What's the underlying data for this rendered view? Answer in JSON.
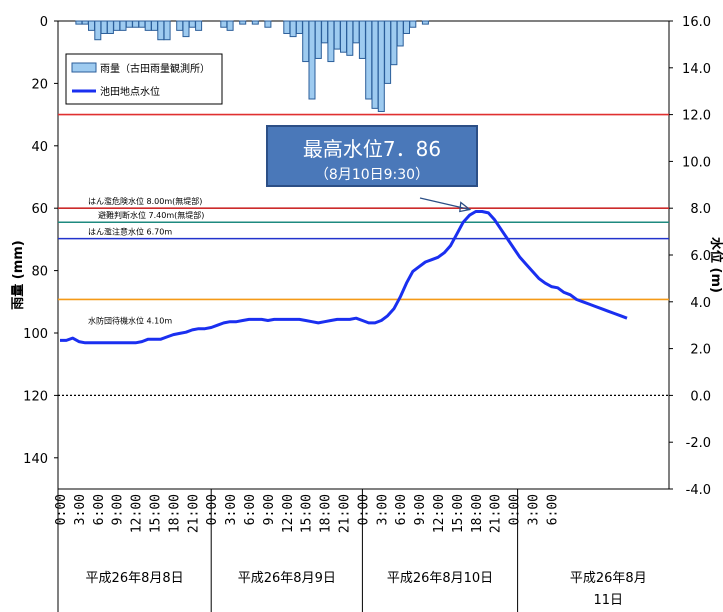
{
  "chart_data": {
    "type": "bar+line",
    "left_axis": {
      "label": "雨量 (mm)",
      "ticks": [
        0,
        20,
        40,
        60,
        80,
        100,
        120,
        140
      ],
      "range": [
        0,
        150
      ],
      "inverted": true
    },
    "right_axis": {
      "label": "水位 (m)",
      "ticks": [
        "16.0",
        "14.0",
        "12.0",
        "10.0",
        "8.0",
        "6.0",
        "4.0",
        "2.0",
        "0.0",
        "-2.0",
        "-4.0"
      ],
      "range": [
        -4,
        16
      ]
    },
    "x_time_labels": [
      "0:00",
      "3:00",
      "6:00",
      "9:00",
      "12:00",
      "15:00",
      "18:00",
      "21:00",
      "0:00",
      "3:00",
      "6:00",
      "9:00",
      "12:00",
      "15:00",
      "18:00",
      "21:00",
      "0:00",
      "3:00",
      "6:00",
      "9:00",
      "12:00",
      "15:00",
      "18:00",
      "21:00",
      "0:00",
      "3:00",
      "6:00"
    ],
    "dates": [
      "平成26年8月8日",
      "平成26年8月9日",
      "平成26年8月10日",
      "平成26年8月11日"
    ],
    "legend": [
      "雨量（古田雨量観測所）",
      "池田地点水位"
    ],
    "rainfall_series": {
      "name": "雨量（古田雨量観測所）",
      "start_hour": 3,
      "step_hours": 1,
      "unit": "mm",
      "values": [
        1,
        1,
        3,
        6,
        4,
        4,
        3,
        3,
        2,
        2,
        2,
        3,
        3,
        6,
        6,
        0,
        3,
        5,
        2,
        3,
        0,
        0,
        0,
        2,
        3,
        0,
        1,
        0,
        1,
        0,
        2,
        0,
        0,
        4,
        5,
        4,
        13,
        25,
        12,
        7,
        13,
        9,
        10,
        11,
        7,
        12,
        25,
        28,
        29,
        20,
        14,
        8,
        4,
        2,
        0,
        1
      ]
    },
    "water_level_series": {
      "name": "池田地点水位",
      "start_hour": 0,
      "step_hours": 1,
      "unit": "m",
      "values": [
        2.35,
        2.35,
        2.45,
        2.3,
        2.25,
        2.25,
        2.25,
        2.25,
        2.25,
        2.25,
        2.25,
        2.25,
        2.25,
        2.3,
        2.4,
        2.4,
        2.4,
        2.5,
        2.6,
        2.65,
        2.7,
        2.8,
        2.85,
        2.85,
        2.9,
        3.0,
        3.1,
        3.15,
        3.15,
        3.2,
        3.25,
        3.25,
        3.25,
        3.2,
        3.25,
        3.25,
        3.25,
        3.25,
        3.25,
        3.2,
        3.15,
        3.1,
        3.15,
        3.2,
        3.25,
        3.25,
        3.25,
        3.3,
        3.2,
        3.1,
        3.1,
        3.2,
        3.4,
        3.7,
        4.2,
        4.8,
        5.3,
        5.5,
        5.7,
        5.8,
        5.9,
        6.1,
        6.4,
        6.9,
        7.4,
        7.7,
        7.86,
        7.86,
        7.8,
        7.5,
        7.1,
        6.7,
        6.3,
        5.9,
        5.6,
        5.3,
        5.0,
        4.8,
        4.65,
        4.6,
        4.4,
        4.3,
        4.1,
        4.0,
        3.9,
        3.8,
        3.7,
        3.6,
        3.5,
        3.4,
        3.3
      ]
    },
    "reference_lines": [
      {
        "label": "はん濫危険水位 8.00m(無堤部)",
        "value": 8.0,
        "color": "#cc2b2b"
      },
      {
        "label": "避難判断水位 7.40m(無堤部)",
        "value": 7.4,
        "color": "#1e8a7f"
      },
      {
        "label": "はん濫注意水位 6.70m",
        "value": 6.7,
        "color": "#2233cc"
      },
      {
        "label": "水防団待機水位 4.10m",
        "value": 4.1,
        "color": "#f59a17"
      }
    ],
    "extra_lines": [
      {
        "value": 12.0,
        "color": "#e03030"
      }
    ],
    "annotation": {
      "line1": "最高水位7．86",
      "line2": "（8月10日9:30）",
      "value": 7.86
    }
  }
}
